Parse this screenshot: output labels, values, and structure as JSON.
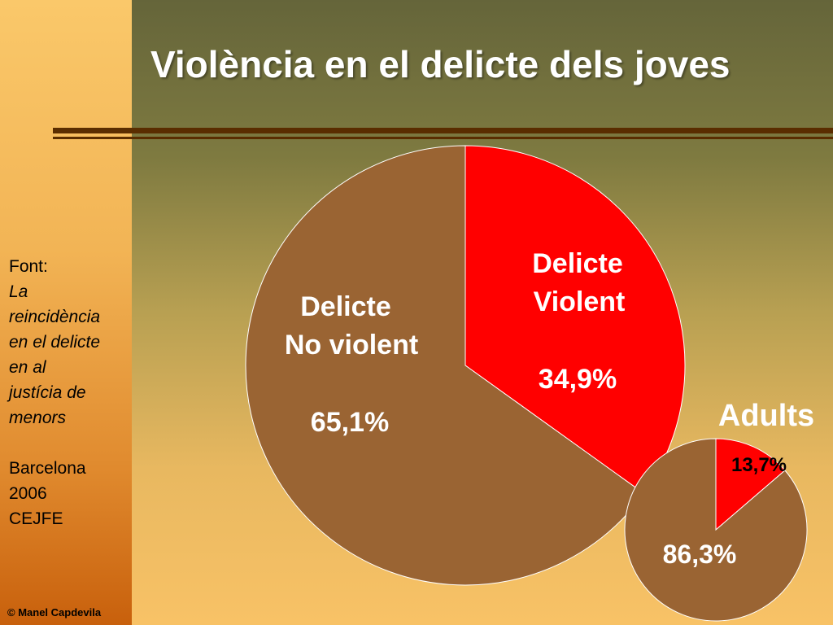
{
  "slide": {
    "title": "Violència en el delicte dels joves",
    "source": {
      "label": "Font:",
      "lines": [
        "La",
        "reincidència",
        "en el delicte",
        "en al",
        "justícia de",
        "menors"
      ],
      "place": "Barcelona",
      "year": "2006",
      "org": "CEJFE"
    },
    "copyright": "© Manel Capdevila"
  },
  "colors": {
    "violent": "#ff0000",
    "non_violent": "#9a6433",
    "slice_border": "#ffffff",
    "label_light": "#ffffff",
    "label_dark": "#000000"
  },
  "chart_data": [
    {
      "type": "pie",
      "title": "",
      "categories": [
        "Delicte Violent",
        "Delicte No violent"
      ],
      "values": [
        34.9,
        65.1
      ],
      "value_labels": [
        "34,9%",
        "65,1%"
      ],
      "label_lines": [
        [
          "Delicte",
          "Violent"
        ],
        [
          "Delicte",
          "No violent"
        ]
      ]
    },
    {
      "type": "pie",
      "title": "Adults",
      "categories": [
        "Delicte Violent",
        "Delicte No violent"
      ],
      "values": [
        13.7,
        86.3
      ],
      "value_labels": [
        "13,7%",
        "86,3%"
      ]
    }
  ]
}
